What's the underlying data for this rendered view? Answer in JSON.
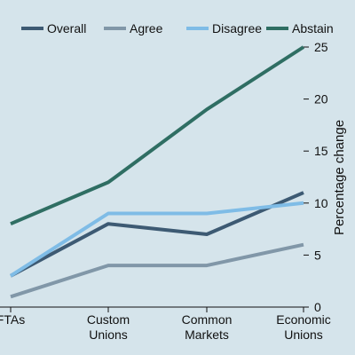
{
  "chart_data": {
    "type": "line",
    "categories": [
      "FTAs",
      "Custom Unions",
      "Common Markets",
      "Economic Unions"
    ],
    "category_lines": [
      [
        "FTAs"
      ],
      [
        "Custom",
        "Unions"
      ],
      [
        "Common",
        "Markets"
      ],
      [
        "Economic",
        "Unions"
      ]
    ],
    "series": [
      {
        "name": "Overall",
        "color": "#3d5a73",
        "values": [
          3,
          8,
          7,
          11
        ]
      },
      {
        "name": "Agree",
        "color": "#8197a8",
        "values": [
          1,
          4,
          4,
          6
        ]
      },
      {
        "name": "Disagree",
        "color": "#7fbce6",
        "values": [
          3,
          9,
          9,
          10
        ]
      },
      {
        "name": "Abstain",
        "color": "#2f6e63",
        "values": [
          8,
          12,
          19,
          25
        ]
      }
    ],
    "ylabel": "Percentage change",
    "ylim": [
      0,
      25
    ],
    "yticks": [
      0,
      5,
      10,
      15,
      20,
      25
    ],
    "y_axis_side": "right",
    "legend_position": "top",
    "grid": false,
    "background": "#d5e4eb"
  }
}
